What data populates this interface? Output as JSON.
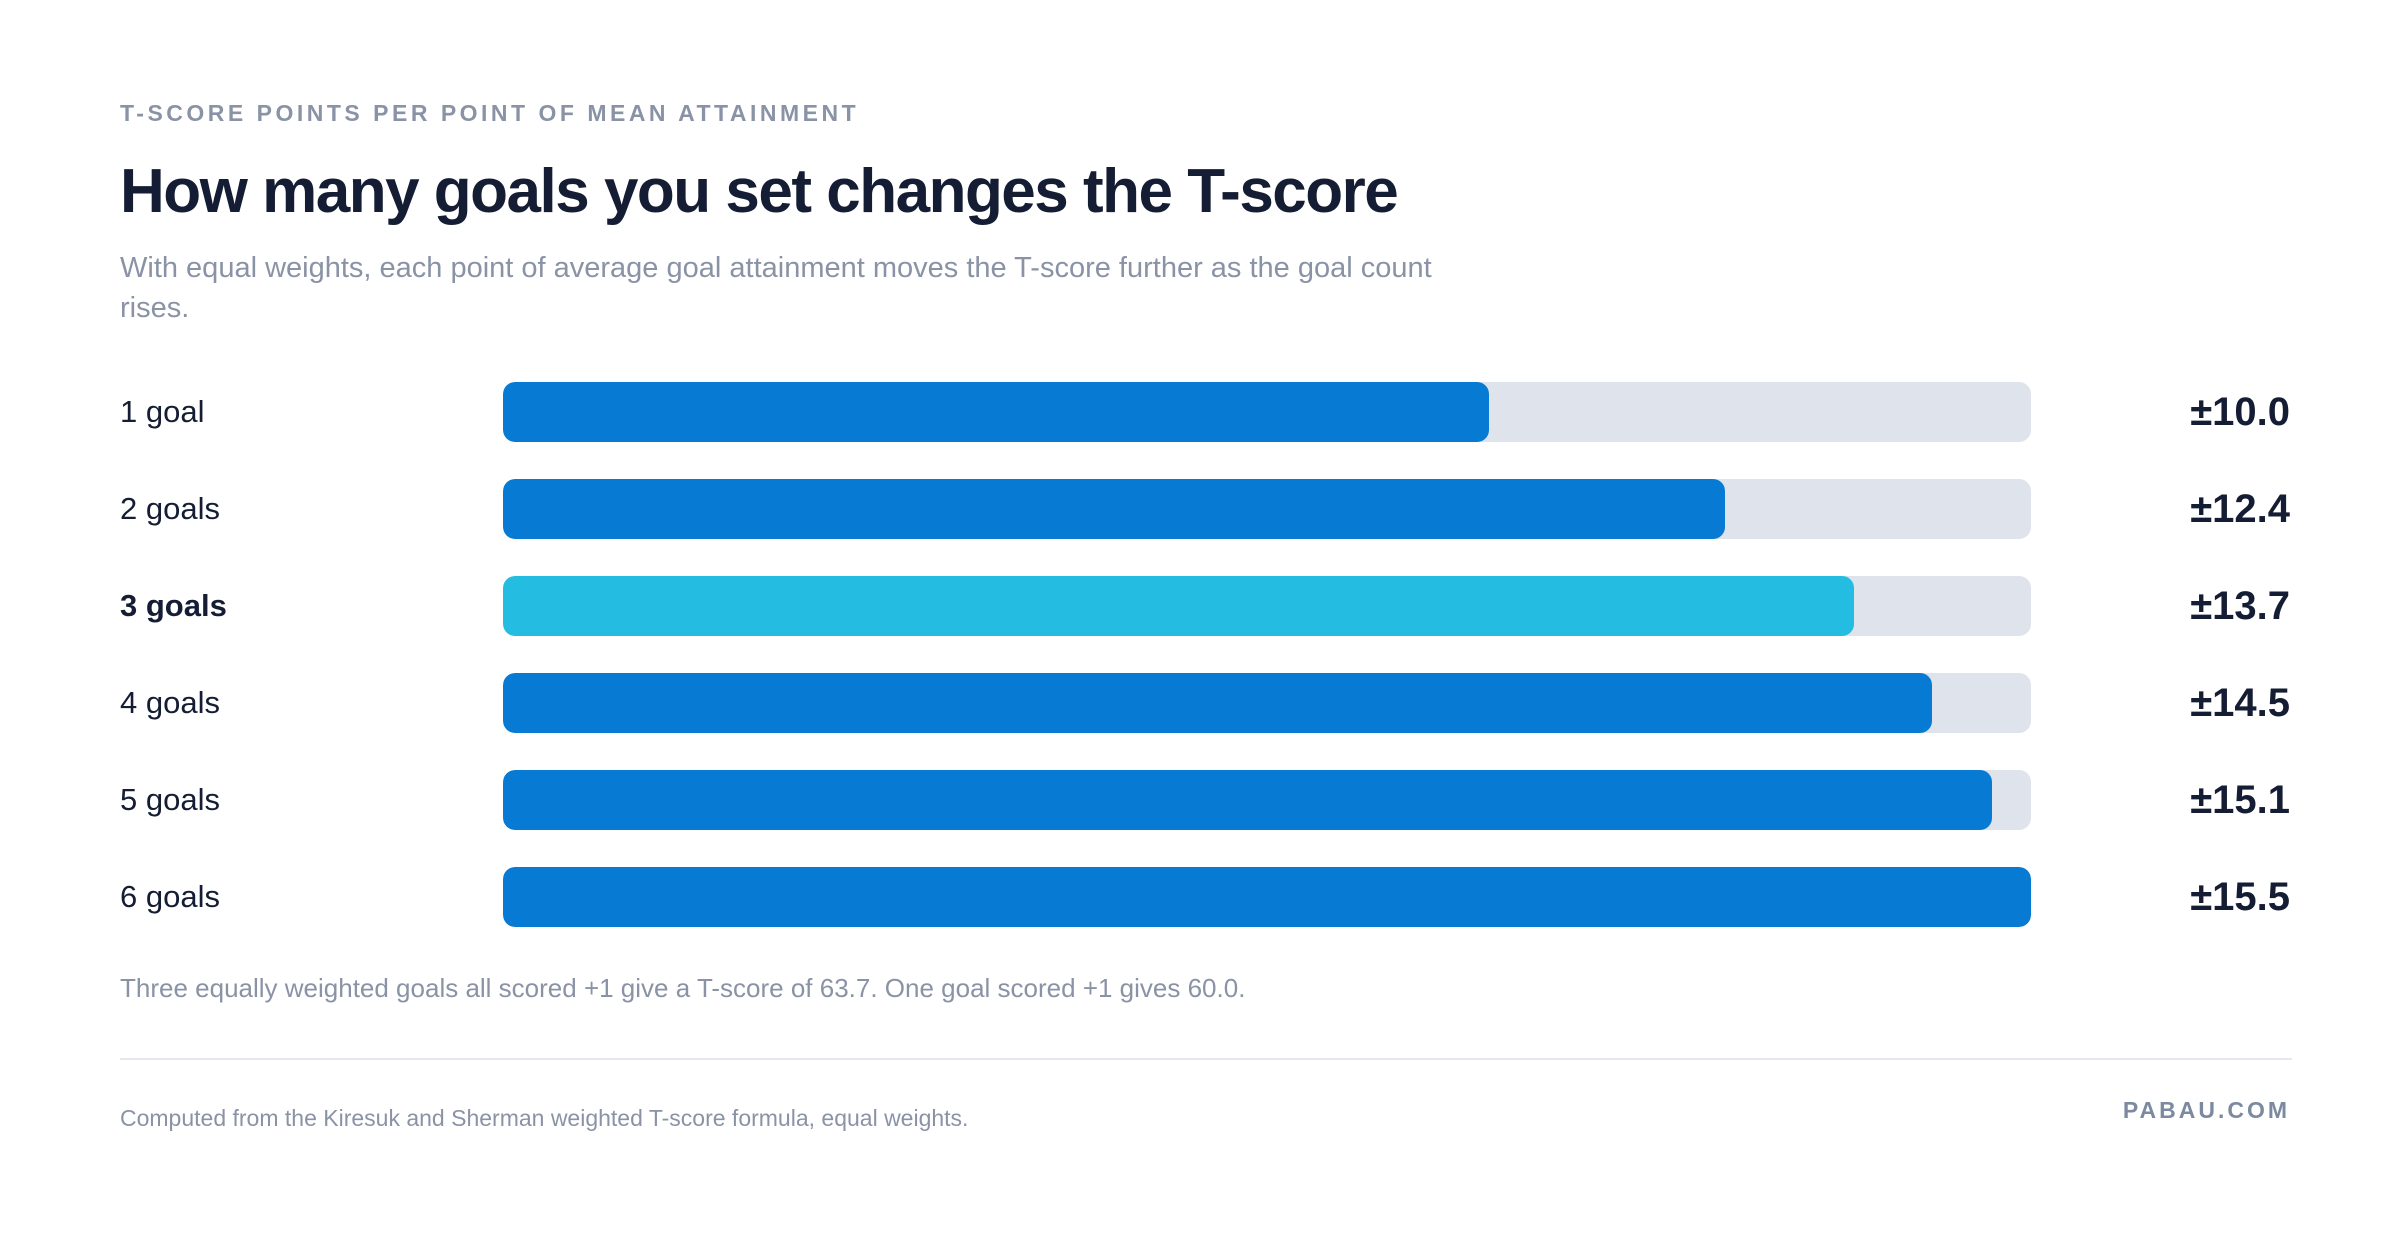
{
  "header": {
    "eyebrow": "T-SCORE POINTS PER POINT OF MEAN ATTAINMENT",
    "title": "How many goals you set changes the T-score",
    "subtitle": "With equal weights, each point of average goal attainment moves the T-score further as the goal count rises."
  },
  "colors": {
    "bar": "#077bd4",
    "highlight_bar": "#24bce0",
    "track": "#dfe3ec",
    "text_dark": "#141d33",
    "text_muted": "#8a93a6"
  },
  "chart_data": {
    "type": "bar",
    "orientation": "horizontal",
    "categories": [
      "1 goal",
      "2 goals",
      "3 goals",
      "4 goals",
      "5 goals",
      "6 goals"
    ],
    "values": [
      10.0,
      12.4,
      13.7,
      14.5,
      15.1,
      15.5
    ],
    "value_labels": [
      "±10.0",
      "±12.4",
      "±13.7",
      "±14.5",
      "±15.1",
      "±15.5"
    ],
    "highlight_index": 2,
    "xlim": [
      0,
      15.5
    ],
    "title": "How many goals you set changes the T-score",
    "xlabel": "",
    "ylabel": "",
    "grid": false
  },
  "note": "Three equally weighted goals all scored +1 give a T-score of 63.7. One goal scored +1 gives 60.0.",
  "footer": {
    "source": "Computed from the Kiresuk and Sherman weighted T-score formula, equal weights.",
    "brand": "PABAU.COM"
  }
}
